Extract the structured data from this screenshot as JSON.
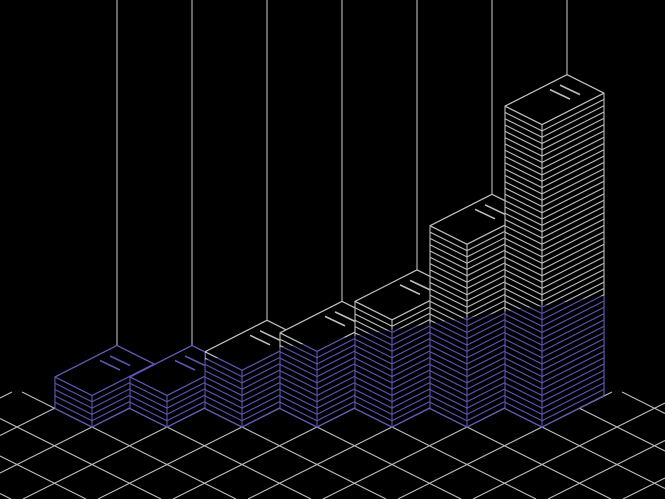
{
  "illustration": {
    "subject": "isometric-growing-stacks",
    "colors": {
      "background": "#000000",
      "line": "#bdbdbd",
      "accent": "#5b56b0"
    },
    "stacks": [
      {
        "layers": 5
      },
      {
        "layers": 5
      },
      {
        "layers": 9
      },
      {
        "layers": 12
      },
      {
        "layers": 17
      },
      {
        "layers": 29
      },
      {
        "layers": 48
      }
    ]
  }
}
